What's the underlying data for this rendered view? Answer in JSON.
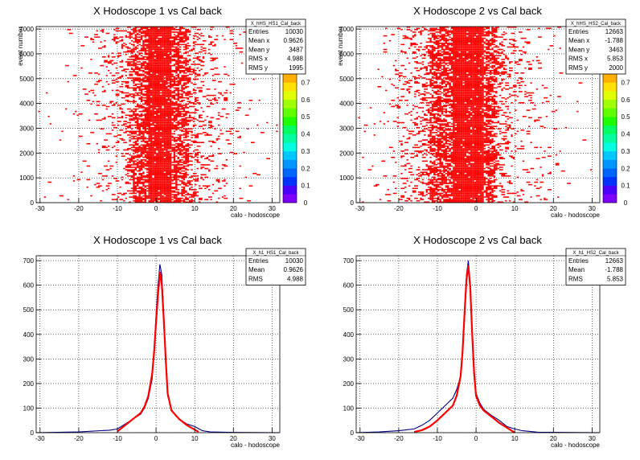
{
  "colors": {
    "frame": "#000000",
    "grid": "#000000",
    "fill2d": "#ff0000",
    "hist_line": "#000080",
    "fit_line": "#ff0000"
  },
  "chart_data": [
    {
      "type": "heatmap",
      "title": "X Hodoscope 1 vs Cal back",
      "xlabel": "calo - hodoscope",
      "ylabel": "event number",
      "xlim": [
        -31,
        32
      ],
      "ylim": [
        0,
        7100
      ],
      "xticks": [
        "-30",
        "-20",
        "-10",
        "0",
        "10",
        "20",
        "30"
      ],
      "yticks": [
        "0",
        "1000",
        "2000",
        "3000",
        "4000",
        "5000",
        "6000",
        "7000"
      ],
      "palette_ticks": [
        "0",
        "0.1",
        "0.2",
        "0.3",
        "0.4",
        "0.5",
        "0.6",
        "0.7"
      ],
      "palette_colors": [
        "#7f00ff",
        "#4b00ff",
        "#0032ff",
        "#0064ff",
        "#0096ff",
        "#00c8ff",
        "#00ffe0",
        "#00ffa0",
        "#00ff60",
        "#20ff00",
        "#60ff00",
        "#a0ff00",
        "#e0ff00",
        "#ffe000",
        "#ffb000",
        "#ff8000"
      ],
      "core": {
        "center": 1,
        "width": 3,
        "band_min": -6,
        "band_max": 8
      },
      "stats": {
        "name": "X_hHS_HS1_Cal_back",
        "rows": [
          [
            "Entries",
            "10030"
          ],
          [
            "Mean x",
            "0.9626"
          ],
          [
            "Mean y",
            "3487"
          ],
          [
            "RMS x",
            "4.988"
          ],
          [
            "RMS y",
            "1995"
          ]
        ]
      }
    },
    {
      "type": "heatmap",
      "title": "X Hodoscope 2 vs Cal back",
      "xlabel": "calo - hodoscope",
      "ylabel": "event number",
      "xlim": [
        -31,
        32
      ],
      "ylim": [
        0,
        7100
      ],
      "xticks": [
        "-30",
        "-20",
        "-10",
        "0",
        "10",
        "20",
        "30"
      ],
      "yticks": [
        "0",
        "1000",
        "2000",
        "3000",
        "4000",
        "5000",
        "6000",
        "7000"
      ],
      "palette_ticks": [
        "0",
        "0.1",
        "0.2",
        "0.3",
        "0.4",
        "0.5",
        "0.6",
        "0.7"
      ],
      "palette_colors": [
        "#7f00ff",
        "#4b00ff",
        "#0032ff",
        "#0064ff",
        "#0096ff",
        "#00c8ff",
        "#00ffe0",
        "#00ffa0",
        "#00ff60",
        "#20ff00",
        "#60ff00",
        "#a0ff00",
        "#e0ff00",
        "#ffe000",
        "#ffb000",
        "#ff8000"
      ],
      "core": {
        "center": -2,
        "width": 4,
        "band_min": -12,
        "band_max": 5
      },
      "stats": {
        "name": "X_hHS_HS2_Cal_back",
        "rows": [
          [
            "Entries",
            "12663"
          ],
          [
            "Mean x",
            "-1.788"
          ],
          [
            "Mean y",
            "3463"
          ],
          [
            "RMS x",
            "5.853"
          ],
          [
            "RMS y",
            "2000"
          ]
        ]
      }
    },
    {
      "type": "line",
      "title": "X Hodoscope 1 vs Cal back",
      "xlabel": "calo - hodoscope",
      "xlim": [
        -31,
        32
      ],
      "ylim": [
        0,
        720
      ],
      "xticks": [
        "-30",
        "-20",
        "-10",
        "0",
        "10",
        "20",
        "30"
      ],
      "yticks": [
        "0",
        "100",
        "200",
        "300",
        "400",
        "500",
        "600",
        "700"
      ],
      "series": [
        {
          "x": [
            -31,
            -20,
            -12,
            -10,
            -8,
            -6,
            -4,
            -3,
            -2,
            -1,
            -0.5,
            0,
            0.5,
            1,
            1.5,
            2,
            2.5,
            3,
            4,
            5,
            6,
            8,
            10,
            12,
            14,
            20,
            32
          ],
          "y": [
            0,
            3,
            10,
            15,
            35,
            55,
            75,
            100,
            140,
            220,
            330,
            480,
            600,
            685,
            640,
            480,
            300,
            150,
            95,
            70,
            55,
            35,
            25,
            8,
            3,
            1,
            0
          ]
        },
        {
          "x": [
            -10,
            -8,
            -6,
            -4,
            -3,
            -2,
            -1,
            -0.5,
            0,
            0.5,
            1,
            1.5,
            2,
            2.5,
            3,
            4,
            6,
            8,
            10,
            11
          ],
          "y": [
            5,
            30,
            55,
            80,
            105,
            150,
            240,
            330,
            450,
            560,
            655,
            600,
            460,
            300,
            160,
            90,
            55,
            30,
            12,
            3
          ]
        }
      ],
      "stats": {
        "name": "X_h1_HS1_Cal_back",
        "rows": [
          [
            "Entries",
            "10030"
          ],
          [
            "Mean",
            "0.9626"
          ],
          [
            "RMS",
            "4.988"
          ]
        ]
      }
    },
    {
      "type": "line",
      "title": "X Hodoscope 2 vs Cal back",
      "xlabel": "calo - hodoscope",
      "xlim": [
        -31,
        32
      ],
      "ylim": [
        0,
        720
      ],
      "xticks": [
        "-30",
        "-20",
        "-10",
        "0",
        "10",
        "20",
        "30"
      ],
      "yticks": [
        "0",
        "100",
        "200",
        "300",
        "400",
        "500",
        "600",
        "700"
      ],
      "series": [
        {
          "x": [
            -31,
            -25,
            -20,
            -16,
            -14,
            -12,
            -10,
            -8,
            -6,
            -5,
            -4,
            -3.5,
            -3,
            -2.5,
            -2,
            -1.5,
            -1,
            -0.5,
            0,
            1,
            2,
            4,
            6,
            8,
            10,
            12,
            16,
            32
          ],
          "y": [
            0,
            3,
            8,
            15,
            30,
            50,
            80,
            110,
            140,
            175,
            230,
            320,
            480,
            640,
            700,
            600,
            420,
            260,
            160,
            120,
            95,
            70,
            50,
            25,
            15,
            8,
            2,
            0
          ]
        },
        {
          "x": [
            -16,
            -14,
            -12,
            -10,
            -8,
            -6,
            -5,
            -4,
            -3.5,
            -3,
            -2.5,
            -2,
            -1.5,
            -1,
            -0.5,
            0,
            1,
            2,
            4,
            6,
            8,
            10
          ],
          "y": [
            3,
            10,
            25,
            50,
            80,
            110,
            150,
            230,
            330,
            480,
            620,
            680,
            590,
            400,
            240,
            150,
            110,
            90,
            65,
            40,
            20,
            0
          ]
        }
      ],
      "stats": {
        "name": "X_h1_HS2_Cal_back",
        "rows": [
          [
            "Entries",
            "12663"
          ],
          [
            "Mean",
            "-1.788"
          ],
          [
            "RMS",
            "5.853"
          ]
        ]
      }
    }
  ]
}
